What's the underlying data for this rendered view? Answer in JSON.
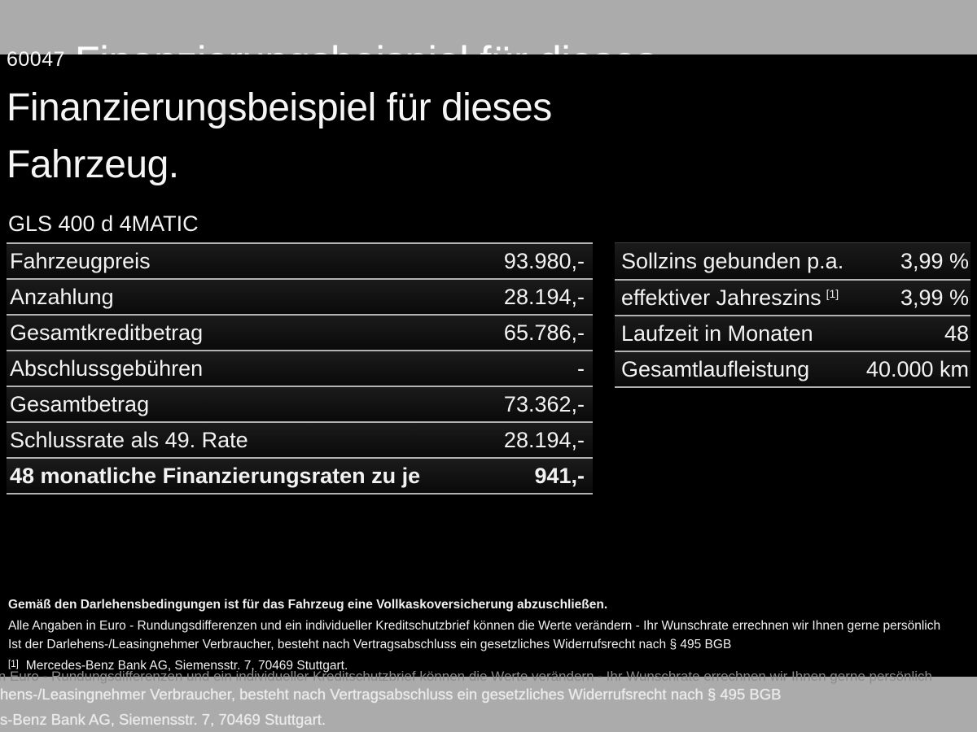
{
  "page": {
    "background": "#000000",
    "band_color": "#ababab",
    "text_color": "#f2f2f2",
    "separator_color": "#b3b3b3"
  },
  "header": {
    "stock_number": "60047",
    "title_line1": "Finanzierungsbeispiel für dieses",
    "title_line2": "Fahrzeug.",
    "ghost_title_fragment": "Finanzierungsbeispiel für dieses",
    "vehicle_name": "GLS 400 d 4MATIC"
  },
  "finance_table": {
    "rows": [
      {
        "label": "Fahrzeugpreis",
        "value": "93.980,-"
      },
      {
        "label": "Anzahlung",
        "value": "28.194,-"
      },
      {
        "label": "Gesamtkreditbetrag",
        "value": "65.786,-"
      },
      {
        "label": "Abschlussgebühren",
        "value": "-"
      },
      {
        "label": "Gesamtbetrag",
        "value": "73.362,-"
      },
      {
        "label": "Schlussrate als 49. Rate",
        "value": "28.194,-"
      },
      {
        "label": "48 monatliche Finanzierungsraten zu je",
        "value": "941,-"
      }
    ]
  },
  "conditions_table": {
    "rows": [
      {
        "label": "Sollzins gebunden p.a.",
        "value": "3,99 %"
      },
      {
        "label": "effektiver Jahreszins",
        "footnote_marker": "[1]",
        "value": "3,99 %"
      },
      {
        "label": "Laufzeit in Monaten",
        "value": "48"
      },
      {
        "label": "Gesamtlaufleistung",
        "value": "40.000 km"
      }
    ]
  },
  "disclaimer": {
    "line_insurance": "Gemäß den Darlehensbedingungen ist für das Fahrzeug eine Vollkaskoversicherung abzuschließen.",
    "line_euro": "Alle Angaben in Euro - Rundungsdifferenzen und ein individueller Kreditschutzbrief können die Werte verändern - Ihr Wunschrate errechnen wir Ihnen gerne persönlich",
    "line_widerruf": "Ist der Darlehens-/Leasingnehmer Verbraucher, besteht nach Vertragsabschluss ein gesetzliches Widerrufsrecht nach § 495 BGB",
    "footnote_marker": "[1]",
    "footnote_text": "Mercedes-Benz Bank AG, Siemensstr. 7, 70469 Stuttgart."
  },
  "ghost_footer": {
    "fragment_euro": "in Euro - Rundungsdifferenzen und ein individueller Kreditschutzbrief können die Werte verändern - Ihr Wunschrate errechnen wir Ihnen gerne persönlich",
    "fragment_widerruf": "hens-/Leasingnehmer Verbraucher, besteht nach Vertragsabschluss ein gesetzliches Widerrufsrecht nach § 495 BGB",
    "fragment_bank": "s-Benz Bank AG, Siemensstr. 7, 70469 Stuttgart."
  }
}
